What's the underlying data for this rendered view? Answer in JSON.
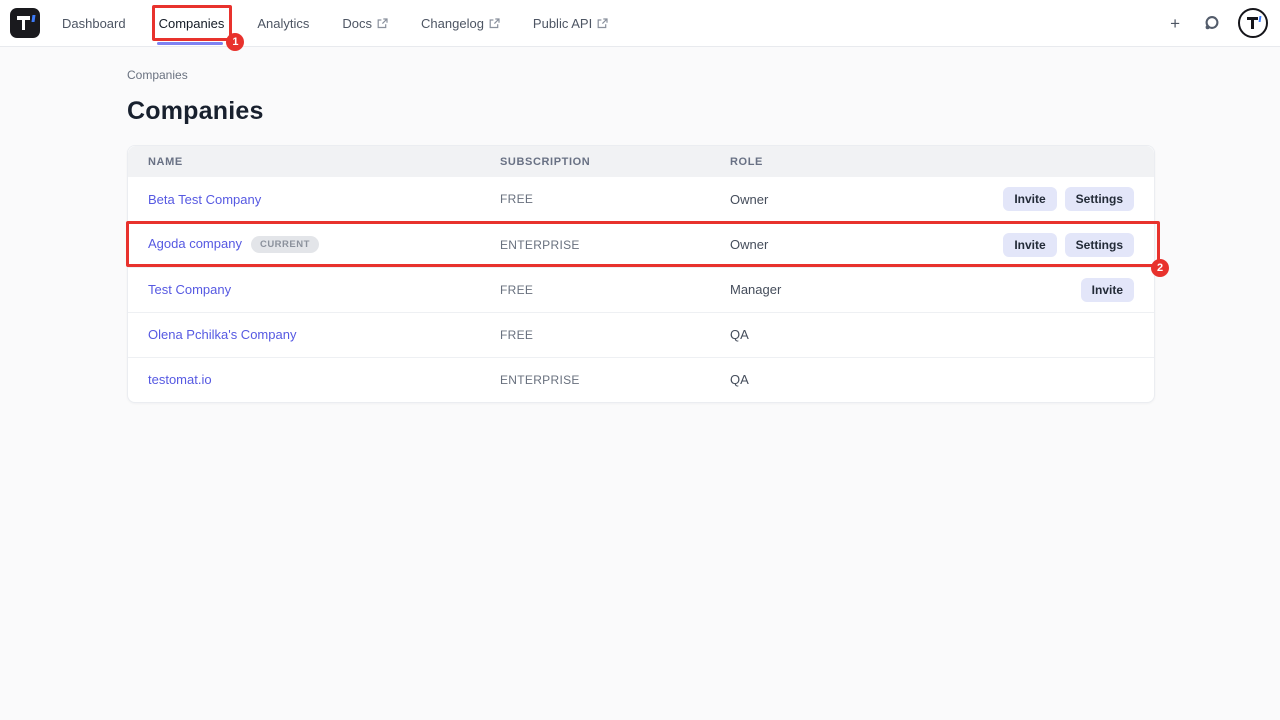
{
  "nav": {
    "items": [
      {
        "label": "Dashboard",
        "external": false,
        "active": false
      },
      {
        "label": "Companies",
        "external": false,
        "active": true
      },
      {
        "label": "Analytics",
        "external": false,
        "active": false
      },
      {
        "label": "Docs",
        "external": true,
        "active": false
      },
      {
        "label": "Changelog",
        "external": true,
        "active": false
      },
      {
        "label": "Public API",
        "external": true,
        "active": false
      }
    ],
    "icons": {
      "add": "+",
      "announcements": "ring-dot-icon",
      "avatar": "testomat-t-logo",
      "brand": "testomat-t-logo"
    }
  },
  "breadcrumb": {
    "label": "Companies"
  },
  "page": {
    "title": "Companies"
  },
  "table": {
    "columns": [
      "NAME",
      "SUBSCRIPTION",
      "ROLE"
    ],
    "rows": [
      {
        "name": "Beta Test Company",
        "badge": null,
        "subscription": "FREE",
        "role": "Owner",
        "actions": [
          "Invite",
          "Settings"
        ],
        "highlighted": false
      },
      {
        "name": "Agoda company",
        "badge": "CURRENT",
        "subscription": "ENTERPRISE",
        "role": "Owner",
        "actions": [
          "Invite",
          "Settings"
        ],
        "highlighted": true
      },
      {
        "name": "Test Company",
        "badge": null,
        "subscription": "FREE",
        "role": "Manager",
        "actions": [
          "Invite"
        ],
        "highlighted": false
      },
      {
        "name": "Olena Pchilka's Company",
        "badge": null,
        "subscription": "FREE",
        "role": "QA",
        "actions": [],
        "highlighted": false
      },
      {
        "name": "testomat.io",
        "badge": null,
        "subscription": "ENTERPRISE",
        "role": "QA",
        "actions": [],
        "highlighted": false
      }
    ]
  },
  "annotations": [
    {
      "number": "1",
      "target": "companies-nav-tab"
    },
    {
      "number": "2",
      "target": "agoda-company-row"
    }
  ],
  "colors": {
    "accent": "#5659e2",
    "active_underline": "#7e82f2",
    "annotation_red": "#e8322d",
    "button_bg": "#e3e6f9",
    "header_bg": "#f1f2f4",
    "logo_blue": "#3d7bf7"
  }
}
